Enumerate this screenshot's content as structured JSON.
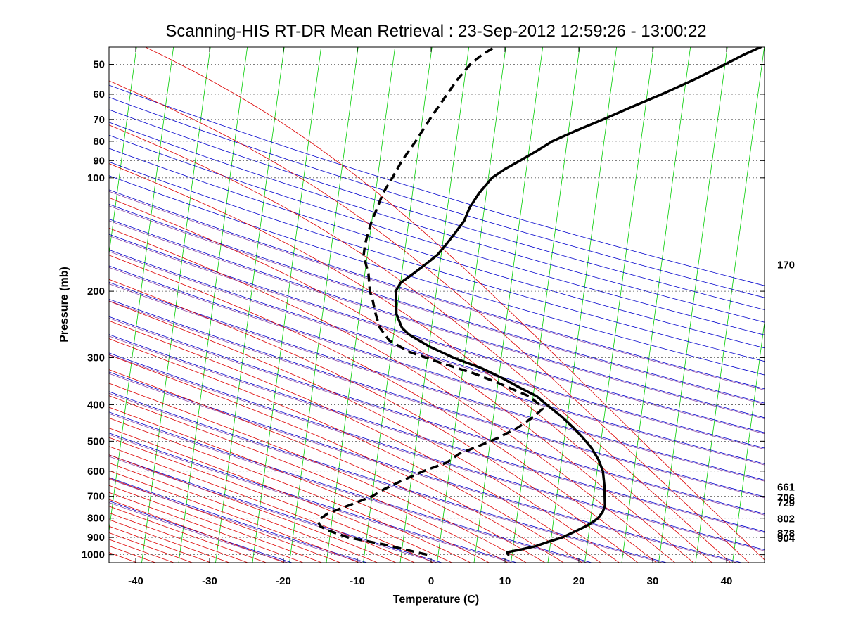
{
  "chart_data": {
    "type": "line",
    "subtype": "skew-t log-p thermodynamic diagram",
    "title": "Scanning-HIS RT-DR Mean Retrieval : 23-Sep-2012 12:59:26 - 13:00:22",
    "xlabel": "Temperature (C)",
    "ylabel": "Pressure (mb)",
    "xlim": [
      -45,
      45
    ],
    "ylim": [
      1050,
      45
    ],
    "x_ticks": [
      -40,
      -30,
      -20,
      -10,
      0,
      10,
      20,
      30,
      40
    ],
    "y_ticks": [
      50,
      60,
      70,
      80,
      90,
      100,
      200,
      300,
      400,
      500,
      600,
      700,
      800,
      900,
      1000
    ],
    "y_scale": "log",
    "skew_note": "isotherms slope up-right (green); dry adiabats (blue); moist adiabats (red); mixing ratio/adiabat reference (purple)",
    "right_labels": [
      "170",
      "661",
      "706",
      "729",
      "802",
      "878",
      "904"
    ],
    "right_label_pressures": [
      170,
      661,
      706,
      729,
      802,
      878,
      904
    ],
    "series": [
      {
        "name": "Temperature",
        "style": "solid",
        "color": "#000000",
        "points": [
          [
            1000,
            9.5
          ],
          [
            985,
            9.3
          ],
          [
            970,
            11.0
          ],
          [
            950,
            13.0
          ],
          [
            920,
            15.0
          ],
          [
            900,
            16.5
          ],
          [
            870,
            18.0
          ],
          [
            840,
            19.5
          ],
          [
            815,
            20.5
          ],
          [
            800,
            21.0
          ],
          [
            770,
            21.5
          ],
          [
            740,
            21.7
          ],
          [
            700,
            21.5
          ],
          [
            660,
            21.3
          ],
          [
            600,
            20.8
          ],
          [
            560,
            20.0
          ],
          [
            520,
            18.8
          ],
          [
            490,
            17.5
          ],
          [
            460,
            16.0
          ],
          [
            430,
            14.2
          ],
          [
            400,
            12.0
          ],
          [
            380,
            10.5
          ],
          [
            360,
            8.0
          ],
          [
            340,
            5.5
          ],
          [
            320,
            2.5
          ],
          [
            300,
            -1.5
          ],
          [
            280,
            -5.0
          ],
          [
            260,
            -8.0
          ],
          [
            250,
            -9.0
          ],
          [
            230,
            -10.0
          ],
          [
            210,
            -10.3
          ],
          [
            200,
            -10.5
          ],
          [
            190,
            -10.0
          ],
          [
            180,
            -8.5
          ],
          [
            170,
            -7.0
          ],
          [
            160,
            -5.5
          ],
          [
            150,
            -4.5
          ],
          [
            140,
            -3.5
          ],
          [
            130,
            -2.5
          ],
          [
            120,
            -2.0
          ],
          [
            110,
            -1.0
          ],
          [
            100,
            0.5
          ],
          [
            95,
            2.0
          ],
          [
            90,
            4.0
          ],
          [
            85,
            6.0
          ],
          [
            80,
            8.0
          ],
          [
            75,
            11.0
          ],
          [
            70,
            14.5
          ],
          [
            65,
            18.0
          ],
          [
            60,
            22.0
          ],
          [
            55,
            26.0
          ],
          [
            50,
            30.0
          ],
          [
            47,
            32.5
          ],
          [
            45,
            34.5
          ]
        ]
      },
      {
        "name": "Dewpoint",
        "style": "dashed",
        "color": "#000000",
        "points": [
          [
            1000,
            -1.5
          ],
          [
            980,
            -3.5
          ],
          [
            960,
            -5.5
          ],
          [
            940,
            -7.5
          ],
          [
            920,
            -10.0
          ],
          [
            900,
            -12.5
          ],
          [
            880,
            -14.0
          ],
          [
            860,
            -15.5
          ],
          [
            840,
            -16.5
          ],
          [
            820,
            -16.8
          ],
          [
            800,
            -16.5
          ],
          [
            780,
            -15.8
          ],
          [
            760,
            -14.5
          ],
          [
            740,
            -13.0
          ],
          [
            720,
            -11.5
          ],
          [
            700,
            -10.0
          ],
          [
            670,
            -8.5
          ],
          [
            640,
            -6.5
          ],
          [
            600,
            -3.5
          ],
          [
            570,
            -0.5
          ],
          [
            540,
            1.0
          ],
          [
            520,
            3.0
          ],
          [
            490,
            6.0
          ],
          [
            460,
            8.5
          ],
          [
            430,
            10.5
          ],
          [
            410,
            11.5
          ],
          [
            400,
            11.0
          ],
          [
            380,
            9.5
          ],
          [
            360,
            6.5
          ],
          [
            350,
            5.0
          ],
          [
            330,
            1.5
          ],
          [
            310,
            -3.0
          ],
          [
            290,
            -7.5
          ],
          [
            270,
            -10.5
          ],
          [
            250,
            -12.0
          ],
          [
            230,
            -12.8
          ],
          [
            210,
            -13.5
          ],
          [
            200,
            -14.0
          ],
          [
            180,
            -14.5
          ],
          [
            170,
            -15.0
          ],
          [
            160,
            -15.5
          ],
          [
            150,
            -15.5
          ],
          [
            140,
            -15.3
          ],
          [
            130,
            -15.0
          ],
          [
            120,
            -14.5
          ],
          [
            110,
            -14.0
          ],
          [
            100,
            -13.0
          ],
          [
            90,
            -12.0
          ],
          [
            80,
            -10.5
          ],
          [
            70,
            -9.0
          ],
          [
            62,
            -7.5
          ],
          [
            55,
            -6.0
          ],
          [
            50,
            -4.5
          ],
          [
            47,
            -3.0
          ],
          [
            45,
            -1.5
          ]
        ]
      }
    ]
  }
}
